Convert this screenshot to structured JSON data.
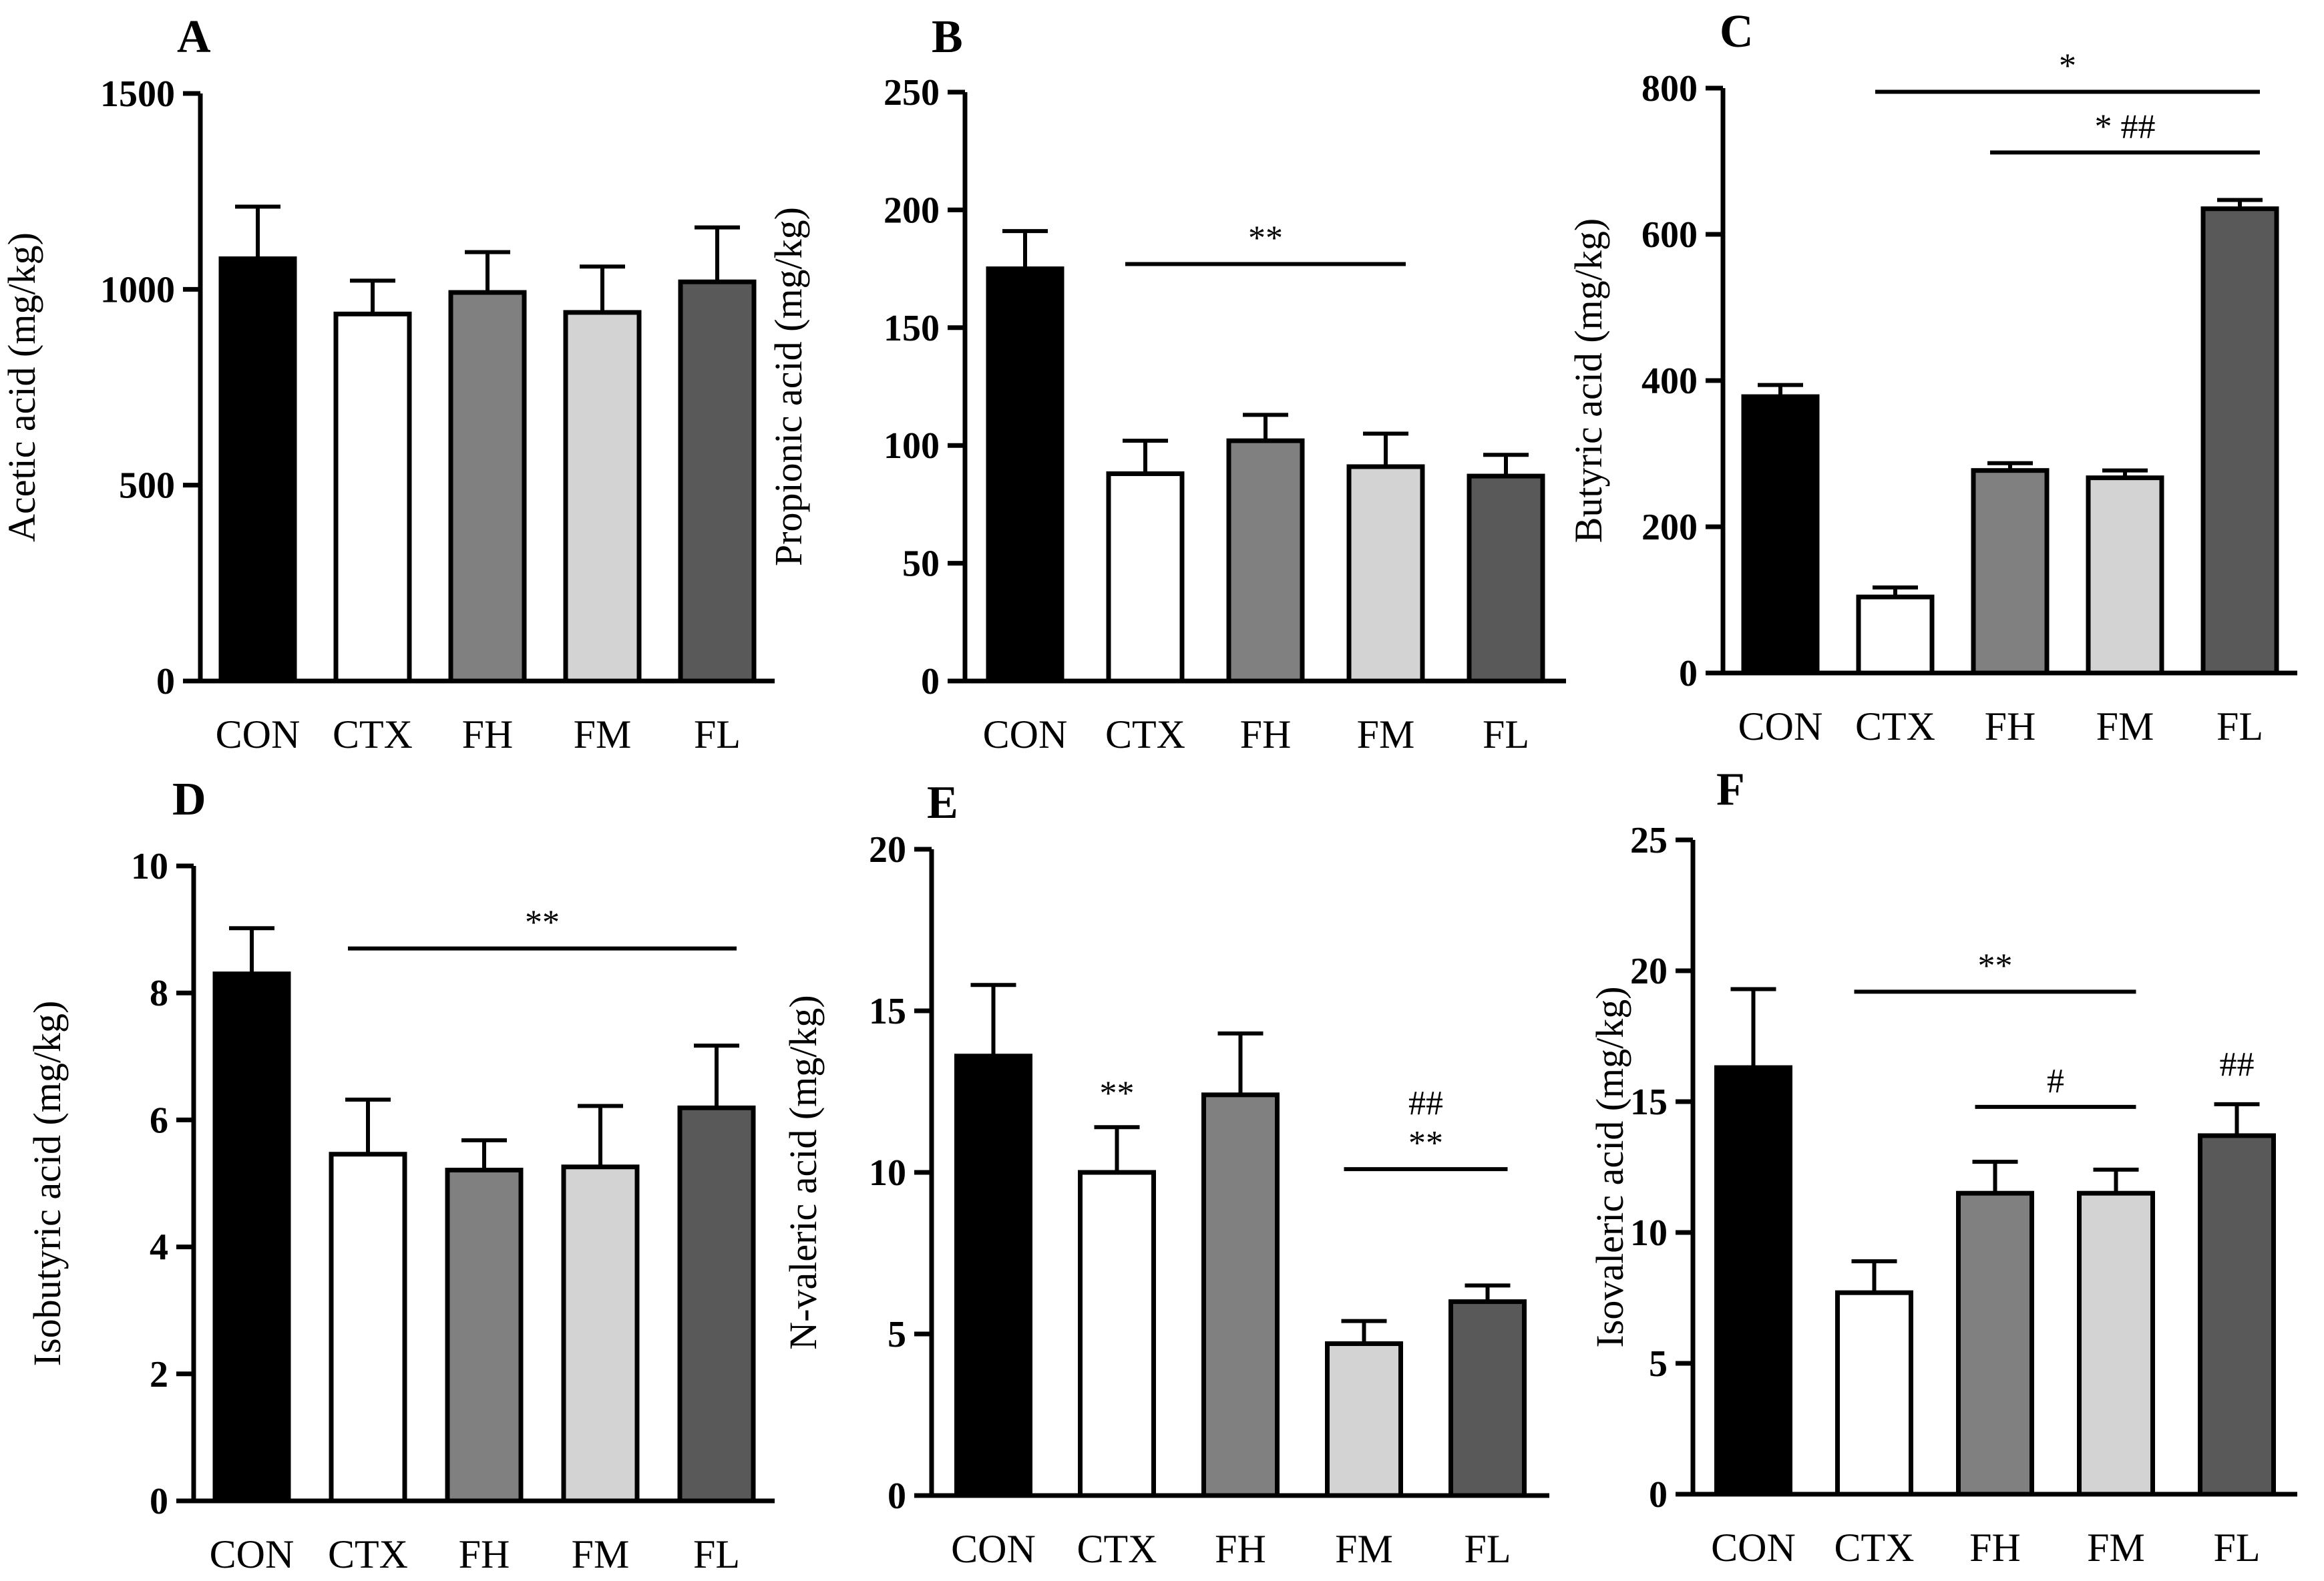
{
  "chart_data": [
    {
      "type": "bar",
      "panel": "A",
      "categories": [
        "CON",
        "CTX",
        "FH",
        "FM",
        "FL"
      ],
      "values": [
        1078,
        937,
        992,
        941,
        1019
      ],
      "errors": [
        133,
        85,
        103,
        117,
        139
      ],
      "ylabel": "Acetic acid (mg/kg)",
      "ylim": [
        0,
        1500
      ],
      "yticks": [
        0,
        500,
        1000,
        1500
      ],
      "colors": [
        "#000000",
        "#ffffff",
        "#808080",
        "#d3d3d3",
        "#595959"
      ],
      "annotations": []
    },
    {
      "type": "bar",
      "panel": "B",
      "categories": [
        "CON",
        "CTX",
        "FH",
        "FM",
        "FL"
      ],
      "values": [
        175,
        88,
        102,
        91,
        87
      ],
      "errors": [
        16,
        14,
        11,
        14,
        9
      ],
      "ylabel": "Propionic acid (mg/kg)",
      "ylim": [
        0,
        250
      ],
      "yticks": [
        0,
        50,
        100,
        150,
        200,
        250
      ],
      "colors": [
        "#000000",
        "#ffffff",
        "#808080",
        "#d3d3d3",
        "#595959"
      ],
      "annotations": [
        {
          "text": "**",
          "from": 1,
          "to": 3,
          "y": 177
        }
      ]
    },
    {
      "type": "bar",
      "panel": "C",
      "categories": [
        "CON",
        "CTX",
        "FH",
        "FM",
        "FL"
      ],
      "values": [
        378,
        104,
        277,
        267,
        635
      ],
      "errors": [
        16,
        13,
        10,
        10,
        12
      ],
      "ylabel": "Butyric acid (mg/kg)",
      "ylim": [
        0,
        800
      ],
      "yticks": [
        0,
        200,
        400,
        600,
        800
      ],
      "colors": [
        "#000000",
        "#ffffff",
        "#808080",
        "#d3d3d3",
        "#595959"
      ],
      "annotations": [
        {
          "text": "*",
          "from": 1,
          "to": 4,
          "y": 795
        },
        {
          "text": "*  ##",
          "from": 2,
          "to": 4,
          "y": 712
        }
      ]
    },
    {
      "type": "bar",
      "panel": "D",
      "categories": [
        "CON",
        "CTX",
        "FH",
        "FM",
        "FL"
      ],
      "values": [
        8.3,
        5.46,
        5.21,
        5.26,
        6.19
      ],
      "errors": [
        0.72,
        0.86,
        0.47,
        0.96,
        0.98
      ],
      "ylabel": "Isobutyric acid (mg/kg)",
      "ylim": [
        0,
        10
      ],
      "yticks": [
        0,
        2,
        4,
        6,
        8,
        10
      ],
      "colors": [
        "#000000",
        "#ffffff",
        "#808080",
        "#d3d3d3",
        "#595959"
      ],
      "annotations": [
        {
          "text": "**",
          "from": 1,
          "to": 4,
          "y": 8.7
        }
      ]
    },
    {
      "type": "bar",
      "panel": "E",
      "categories": [
        "CON",
        "CTX",
        "FH",
        "FM",
        "FL"
      ],
      "values": [
        13.6,
        10.0,
        12.4,
        4.7,
        6.0
      ],
      "errors": [
        2.2,
        1.4,
        1.9,
        0.7,
        0.5
      ],
      "ylabel": "N-valeric acid (mg/kg)",
      "ylim": [
        0,
        20
      ],
      "yticks": [
        0,
        5,
        10,
        15,
        20
      ],
      "colors": [
        "#000000",
        "#ffffff",
        "#808080",
        "#d3d3d3",
        "#595959"
      ],
      "annotations": [
        {
          "text": "**",
          "bar": 1,
          "y": 12.1
        },
        {
          "text": "**",
          "from": 3,
          "to": 4,
          "y": 10.1
        },
        {
          "text": "##",
          "between": [
            3,
            4
          ],
          "y": 11.8
        }
      ]
    },
    {
      "type": "bar",
      "panel": "F",
      "categories": [
        "CON",
        "CTX",
        "FH",
        "FM",
        "FL"
      ],
      "values": [
        16.3,
        7.7,
        11.5,
        11.5,
        13.7
      ],
      "errors": [
        3.0,
        1.2,
        1.2,
        0.9,
        1.2
      ],
      "ylabel": "Isovaleric acid (mg/kg)",
      "ylim": [
        0,
        25
      ],
      "yticks": [
        0,
        5,
        10,
        15,
        20,
        25
      ],
      "colors": [
        "#000000",
        "#ffffff",
        "#808080",
        "#d3d3d3",
        "#595959"
      ],
      "annotations": [
        {
          "text": "**",
          "from": 1,
          "to": 3,
          "y": 19.2
        },
        {
          "text": "#",
          "from": 2,
          "to": 3,
          "y": 14.8
        },
        {
          "text": "##",
          "bar": 4,
          "y": 16.0
        }
      ]
    }
  ]
}
